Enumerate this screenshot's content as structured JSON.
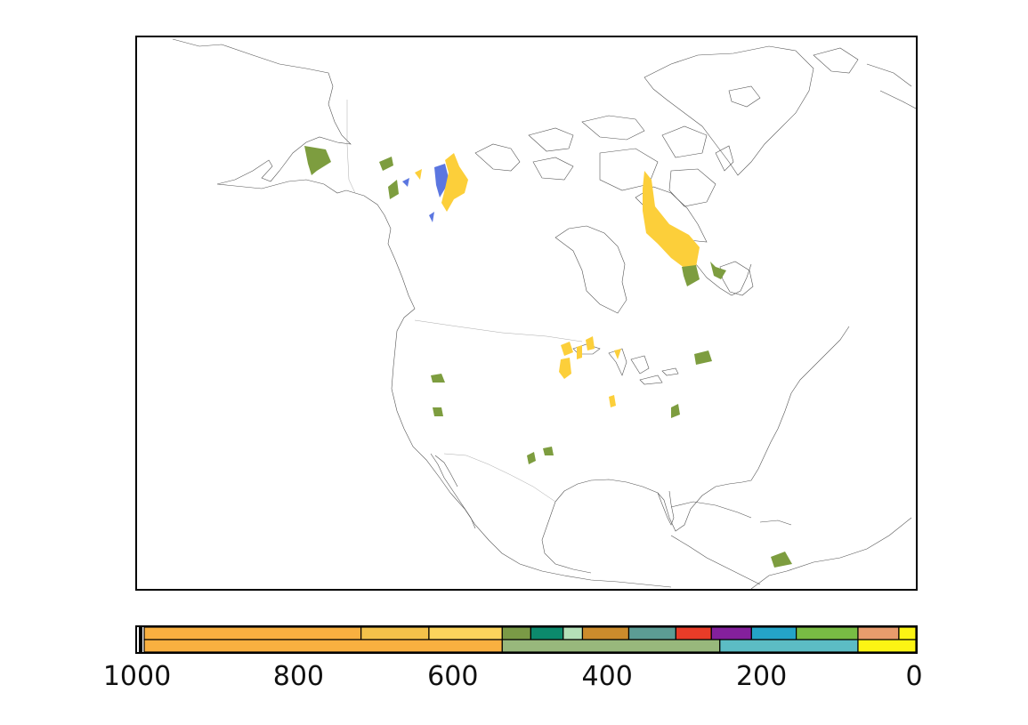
{
  "legend": {
    "ticks": [
      "1000",
      "800",
      "600",
      "400",
      "200",
      "0"
    ],
    "range": [
      1000,
      0
    ],
    "upper_bands": [
      {
        "from": 1000,
        "to": 719,
        "color": "#f9b040"
      },
      {
        "from": 719,
        "to": 631,
        "color": "#f4c24a"
      },
      {
        "from": 631,
        "to": 536,
        "color": "#fcd45c"
      },
      {
        "from": 536,
        "to": 499,
        "color": "#7a9a46"
      },
      {
        "from": 499,
        "to": 457,
        "color": "#0c8a6c"
      },
      {
        "from": 457,
        "to": 432,
        "color": "#b4e0b8"
      },
      {
        "from": 432,
        "to": 372,
        "color": "#cc8c2c"
      },
      {
        "from": 372,
        "to": 311,
        "color": "#5c9c94"
      },
      {
        "from": 311,
        "to": 265,
        "color": "#e83c28"
      },
      {
        "from": 265,
        "to": 213,
        "color": "#84209c"
      },
      {
        "from": 213,
        "to": 155,
        "color": "#24a4c8"
      },
      {
        "from": 155,
        "to": 75,
        "color": "#78bc44"
      },
      {
        "from": 75,
        "to": 22,
        "color": "#e89c6c"
      },
      {
        "from": 22,
        "to": 0,
        "color": "#fcf414"
      }
    ],
    "lower_bands": [
      {
        "from": 1000,
        "to": 536,
        "color": "#f9b040"
      },
      {
        "from": 536,
        "to": 254,
        "color": "#98b87c"
      },
      {
        "from": 254,
        "to": 75,
        "color": "#5cbcc4"
      },
      {
        "from": 75,
        "to": 0,
        "color": "#fcf414"
      }
    ]
  },
  "map": {
    "colors": {
      "yellow": "#fccf3a",
      "green": "#7d9d3f",
      "blue": "#5b76e0"
    }
  }
}
